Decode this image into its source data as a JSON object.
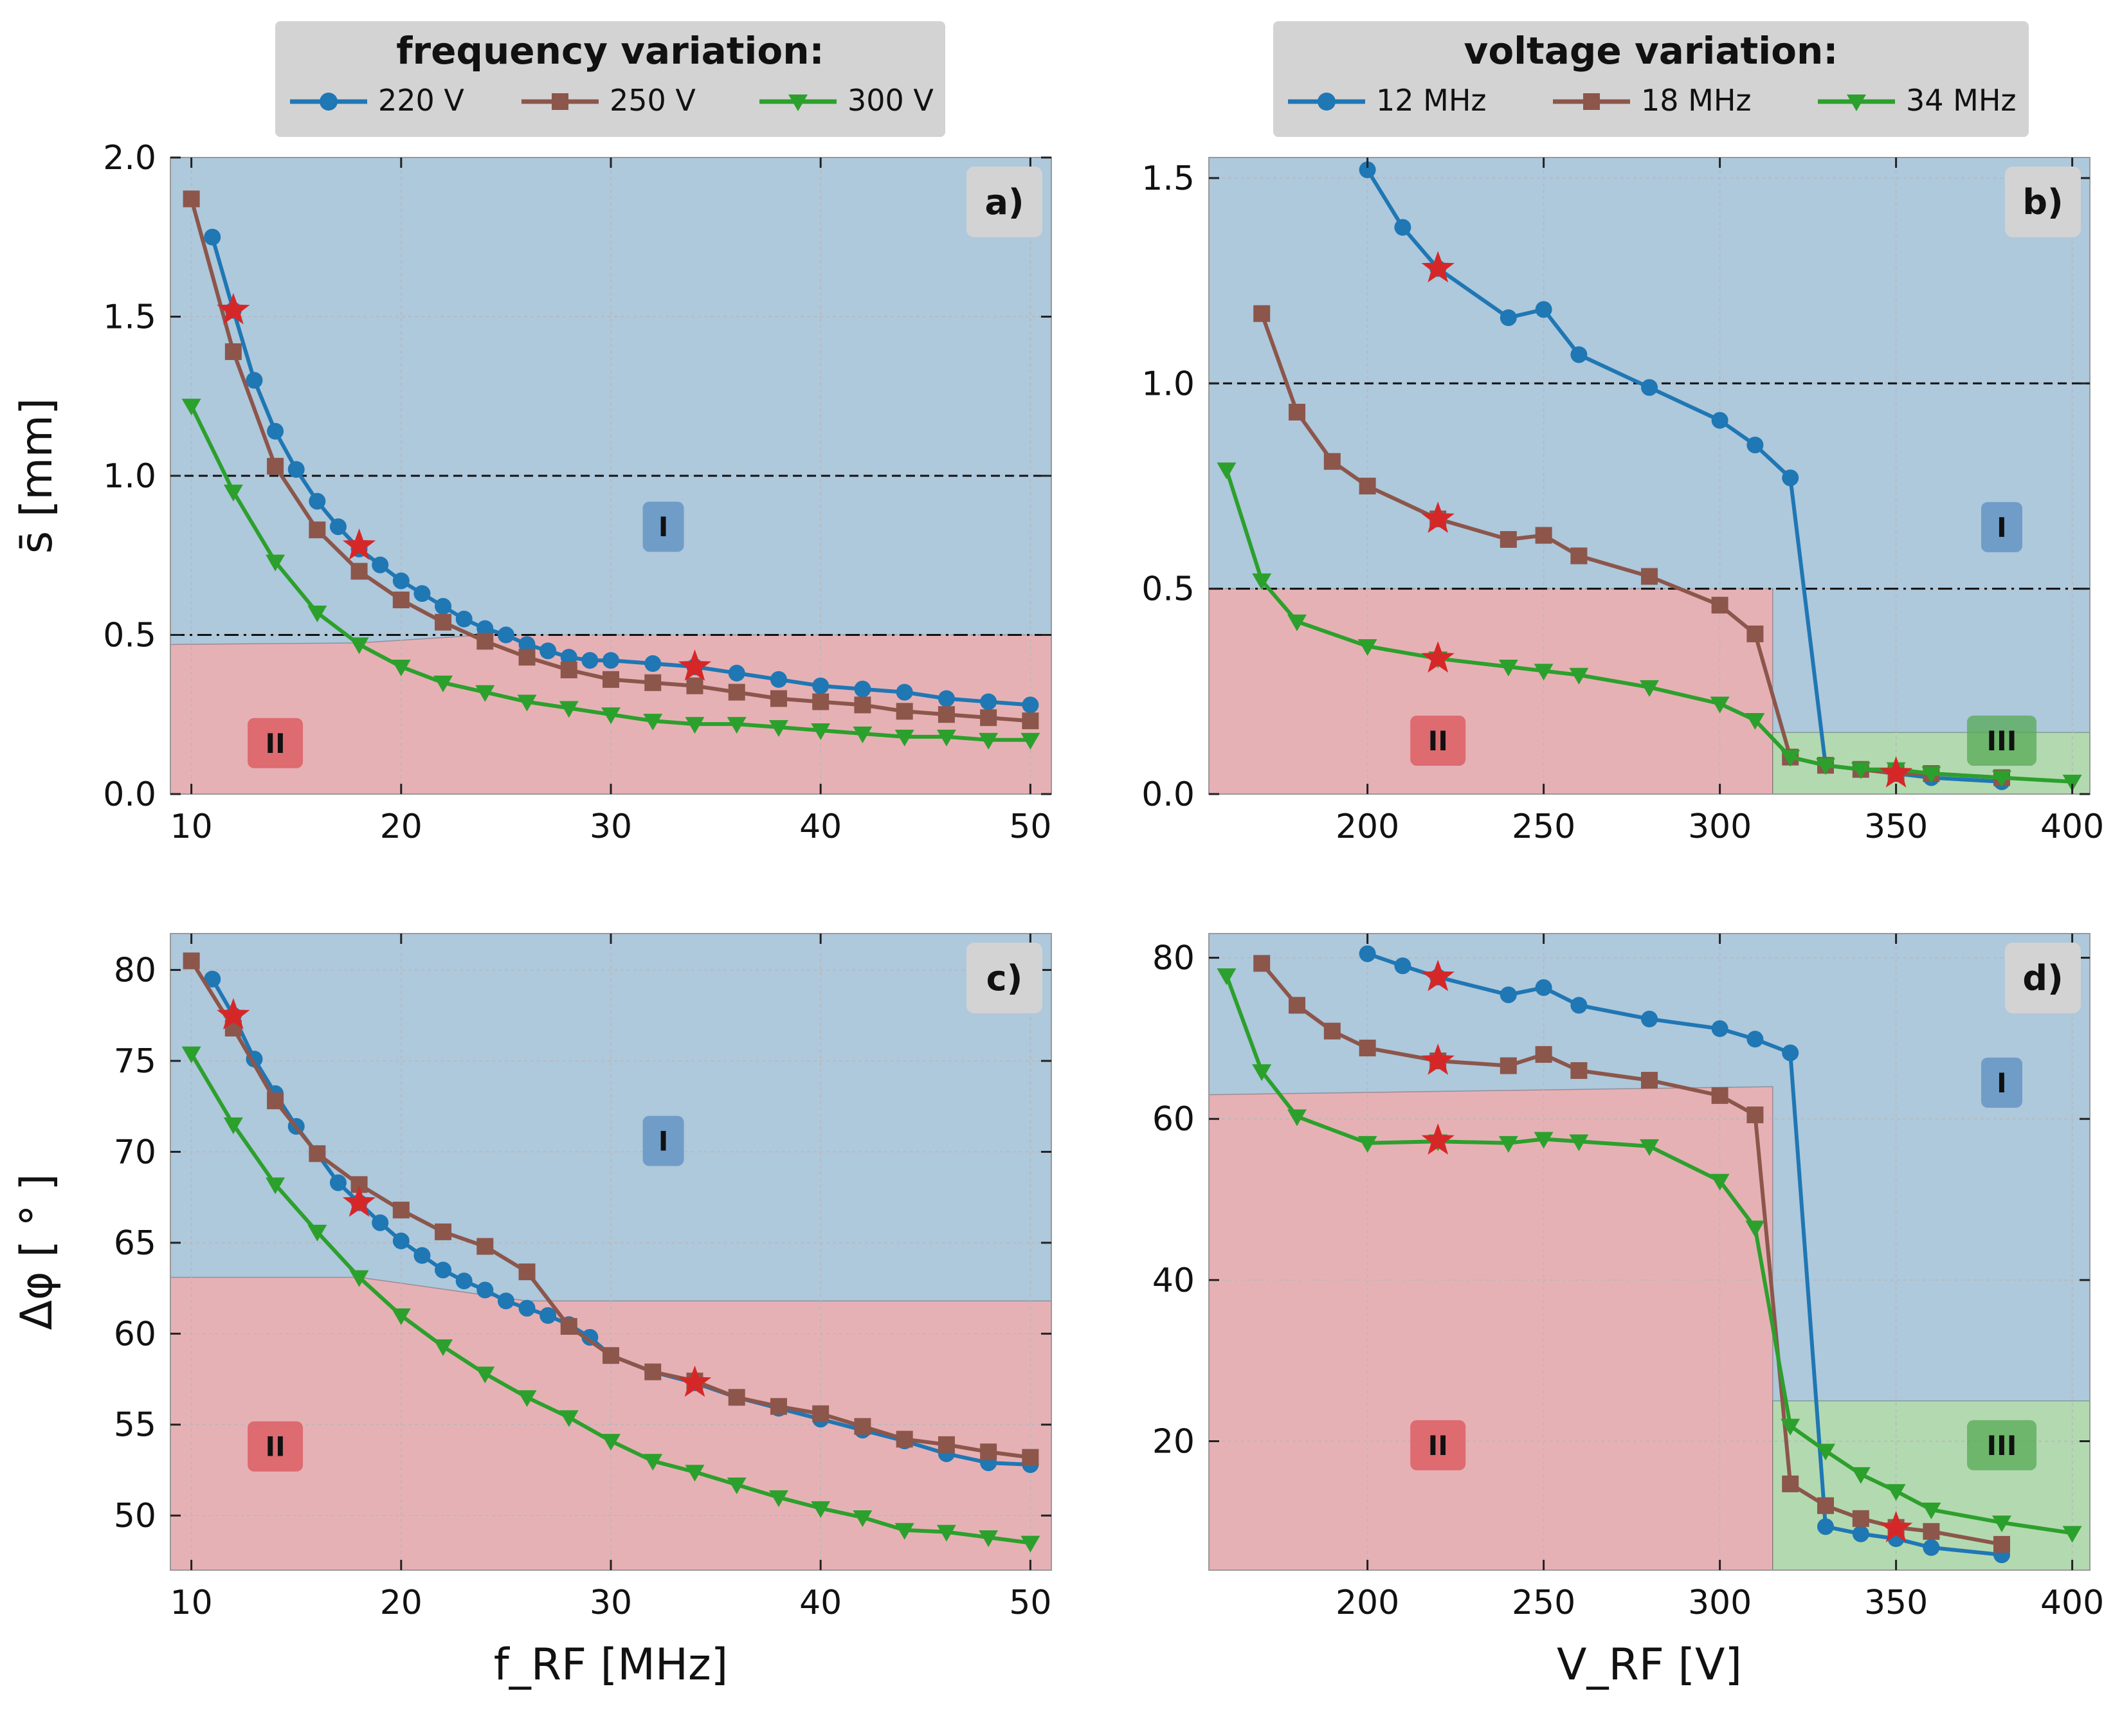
{
  "legends": {
    "freq": {
      "title": "frequency variation:",
      "entries": [
        "220 V",
        "250 V",
        "300 V"
      ]
    },
    "volt": {
      "title": "voltage variation:",
      "entries": [
        "12 MHz",
        "18 MHz",
        "34 MHz"
      ]
    }
  },
  "colors": {
    "blue": "#1f77b4",
    "brown": "#8c564b",
    "green": "#2ca02c",
    "star": "#d62728",
    "regionI": "#aec8dc",
    "regionII": "#e6b1b5",
    "regionIII": "#b3d9b0"
  },
  "chart_data": [
    {
      "panel_label": "a)",
      "type": "line",
      "xlabel": "",
      "ylabel": "s̄ [mm]",
      "xlim": [
        9,
        51
      ],
      "ylim": [
        0,
        2.0
      ],
      "xticks": [
        10,
        20,
        30,
        40,
        50
      ],
      "yticks": [
        0.0,
        0.5,
        1.0,
        1.5,
        2.0
      ],
      "ytick_labels": [
        "0.0",
        "0.5",
        "1.0",
        "1.5",
        "2.0"
      ],
      "hlines": [
        {
          "y": 1.0,
          "style": "dashed"
        },
        {
          "y": 0.5,
          "style": "dashdot"
        }
      ],
      "regions": [
        {
          "label": "I",
          "color": "regionI",
          "points": [
            [
              9,
              0
            ],
            [
              51,
              0
            ],
            [
              51,
              2.0
            ],
            [
              9,
              2.0
            ]
          ]
        },
        {
          "label": "II",
          "color": "regionII",
          "points": [
            [
              9,
              0
            ],
            [
              51,
              0
            ],
            [
              51,
              0.5
            ],
            [
              24,
              0.5
            ],
            [
              18,
              0.475
            ],
            [
              9,
              0.47
            ]
          ]
        }
      ],
      "region_labels": [
        {
          "text": "I",
          "x": 32.5,
          "y": 0.84,
          "color": "regionI"
        },
        {
          "text": "II",
          "x": 14,
          "y": 0.16,
          "color": "regionII"
        }
      ],
      "series": [
        {
          "name": "220 V",
          "color": "blue",
          "marker": "circle",
          "x": [
            11,
            12,
            13,
            14,
            15,
            16,
            17,
            18,
            19,
            20,
            21,
            22,
            23,
            24,
            25,
            26,
            27,
            28,
            29,
            30,
            32,
            34,
            36,
            38,
            40,
            42,
            44,
            46,
            48,
            50
          ],
          "y": [
            1.75,
            1.52,
            1.3,
            1.14,
            1.02,
            0.92,
            0.84,
            0.77,
            0.72,
            0.67,
            0.63,
            0.59,
            0.55,
            0.52,
            0.5,
            0.47,
            0.45,
            0.43,
            0.42,
            0.42,
            0.41,
            0.4,
            0.38,
            0.36,
            0.34,
            0.33,
            0.32,
            0.3,
            0.29,
            0.28
          ]
        },
        {
          "name": "250 V",
          "color": "brown",
          "marker": "square",
          "x": [
            10,
            12,
            14,
            16,
            18,
            20,
            22,
            24,
            26,
            28,
            30,
            32,
            34,
            36,
            38,
            40,
            42,
            44,
            46,
            48,
            50
          ],
          "y": [
            1.87,
            1.39,
            1.03,
            0.83,
            0.7,
            0.61,
            0.54,
            0.48,
            0.43,
            0.39,
            0.36,
            0.35,
            0.34,
            0.32,
            0.3,
            0.29,
            0.28,
            0.26,
            0.25,
            0.24,
            0.23
          ]
        },
        {
          "name": "300 V",
          "color": "green",
          "marker": "triangle",
          "x": [
            10,
            12,
            14,
            16,
            18,
            20,
            22,
            24,
            26,
            28,
            30,
            32,
            34,
            36,
            38,
            40,
            42,
            44,
            46,
            48,
            50
          ],
          "y": [
            1.22,
            0.95,
            0.73,
            0.57,
            0.47,
            0.4,
            0.35,
            0.32,
            0.29,
            0.27,
            0.25,
            0.23,
            0.22,
            0.22,
            0.21,
            0.2,
            0.19,
            0.18,
            0.18,
            0.17,
            0.17
          ]
        }
      ],
      "stars": [
        {
          "x": 12,
          "y": 1.52
        },
        {
          "x": 18,
          "y": 0.78
        },
        {
          "x": 34,
          "y": 0.4
        }
      ]
    },
    {
      "panel_label": "b)",
      "type": "line",
      "xlabel": "",
      "ylabel": "",
      "xlim": [
        155,
        405
      ],
      "ylim": [
        0,
        1.55
      ],
      "xticks": [
        200,
        250,
        300,
        350,
        400
      ],
      "yticks": [
        0.0,
        0.5,
        1.0,
        1.5
      ],
      "ytick_labels": [
        "0.0",
        "0.5",
        "1.0",
        "1.5"
      ],
      "hlines": [
        {
          "y": 1.0,
          "style": "dashed"
        },
        {
          "y": 0.5,
          "style": "dashdot"
        }
      ],
      "regions": [
        {
          "label": "I",
          "color": "regionI",
          "points": [
            [
              155,
              0
            ],
            [
              405,
              0
            ],
            [
              405,
              1.55
            ],
            [
              155,
              1.55
            ]
          ]
        },
        {
          "label": "II",
          "color": "regionII",
          "points": [
            [
              155,
              0
            ],
            [
              315,
              0
            ],
            [
              315,
              0.5
            ],
            [
              155,
              0.5
            ]
          ]
        },
        {
          "label": "III",
          "color": "regionIII",
          "points": [
            [
              315,
              0
            ],
            [
              405,
              0
            ],
            [
              405,
              0.15
            ],
            [
              315,
              0.15
            ]
          ]
        }
      ],
      "region_labels": [
        {
          "text": "I",
          "x": 380,
          "y": 0.65,
          "color": "regionI"
        },
        {
          "text": "II",
          "x": 220,
          "y": 0.13,
          "color": "regionII"
        },
        {
          "text": "III",
          "x": 380,
          "y": 0.13,
          "color": "regionIII"
        }
      ],
      "series": [
        {
          "name": "12 MHz",
          "color": "blue",
          "marker": "circle",
          "x": [
            200,
            210,
            220,
            240,
            250,
            260,
            280,
            300,
            310,
            320,
            330,
            340,
            350,
            360,
            380
          ],
          "y": [
            1.52,
            1.38,
            1.28,
            1.16,
            1.18,
            1.07,
            0.99,
            0.91,
            0.85,
            0.77,
            0.07,
            0.06,
            0.05,
            0.04,
            0.03
          ]
        },
        {
          "name": "18 MHz",
          "color": "brown",
          "marker": "square",
          "x": [
            170,
            180,
            190,
            200,
            220,
            240,
            250,
            260,
            280,
            300,
            310,
            320,
            330,
            340,
            350,
            360,
            380
          ],
          "y": [
            1.17,
            0.93,
            0.81,
            0.75,
            0.67,
            0.62,
            0.63,
            0.58,
            0.53,
            0.46,
            0.39,
            0.09,
            0.07,
            0.06,
            0.05,
            0.05,
            0.04
          ]
        },
        {
          "name": "34 MHz",
          "color": "green",
          "marker": "triangle",
          "x": [
            160,
            170,
            180,
            200,
            220,
            240,
            250,
            260,
            280,
            300,
            310,
            320,
            330,
            340,
            350,
            360,
            380,
            400
          ],
          "y": [
            0.79,
            0.52,
            0.42,
            0.36,
            0.33,
            0.31,
            0.3,
            0.29,
            0.26,
            0.22,
            0.18,
            0.09,
            0.07,
            0.06,
            0.06,
            0.05,
            0.04,
            0.03
          ]
        }
      ],
      "stars": [
        {
          "x": 220,
          "y": 1.28
        },
        {
          "x": 220,
          "y": 0.67
        },
        {
          "x": 220,
          "y": 0.33
        },
        {
          "x": 350,
          "y": 0.05
        }
      ]
    },
    {
      "panel_label": "c)",
      "type": "line",
      "xlabel": "f_RF [MHz]",
      "ylabel": "Δφ [ ° ]",
      "xlim": [
        9,
        51
      ],
      "ylim": [
        47,
        82
      ],
      "xticks": [
        10,
        20,
        30,
        40,
        50
      ],
      "yticks": [
        50,
        55,
        60,
        65,
        70,
        75,
        80
      ],
      "ytick_labels": [
        "50",
        "55",
        "60",
        "65",
        "70",
        "75",
        "80"
      ],
      "hlines": [],
      "regions": [
        {
          "label": "I",
          "color": "regionI",
          "points": [
            [
              9,
              47
            ],
            [
              51,
              47
            ],
            [
              51,
              82
            ],
            [
              9,
              82
            ]
          ]
        },
        {
          "label": "II",
          "color": "regionII",
          "points": [
            [
              9,
              47
            ],
            [
              51,
              47
            ],
            [
              51,
              61.8
            ],
            [
              26,
              61.8
            ],
            [
              18,
              63.1
            ],
            [
              9,
              63.1
            ]
          ]
        }
      ],
      "region_labels": [
        {
          "text": "I",
          "x": 32.5,
          "y": 70.6,
          "color": "regionI"
        },
        {
          "text": "II",
          "x": 14,
          "y": 53.8,
          "color": "regionII"
        }
      ],
      "series": [
        {
          "name": "220 V",
          "color": "blue",
          "marker": "circle",
          "x": [
            11,
            12,
            13,
            14,
            15,
            16,
            17,
            18,
            19,
            20,
            21,
            22,
            23,
            24,
            25,
            26,
            27,
            28,
            29,
            30,
            32,
            34,
            36,
            38,
            40,
            42,
            44,
            46,
            48,
            50
          ],
          "y": [
            79.5,
            77.5,
            75.1,
            73.2,
            71.4,
            69.9,
            68.3,
            67.2,
            66.1,
            65.1,
            64.3,
            63.5,
            62.9,
            62.4,
            61.8,
            61.4,
            61.0,
            60.5,
            59.8,
            58.8,
            57.9,
            57.3,
            56.5,
            55.9,
            55.3,
            54.7,
            54.1,
            53.4,
            52.9,
            52.8
          ]
        },
        {
          "name": "250 V",
          "color": "brown",
          "marker": "square",
          "x": [
            10,
            12,
            14,
            16,
            18,
            20,
            22,
            24,
            26,
            28,
            30,
            32,
            34,
            36,
            38,
            40,
            42,
            44,
            46,
            48,
            50
          ],
          "y": [
            80.5,
            76.8,
            72.8,
            69.9,
            68.2,
            66.8,
            65.6,
            64.8,
            63.4,
            60.4,
            58.8,
            57.9,
            57.4,
            56.5,
            56.0,
            55.6,
            54.9,
            54.2,
            53.9,
            53.5,
            53.2
          ]
        },
        {
          "name": "300 V",
          "color": "green",
          "marker": "triangle",
          "x": [
            10,
            12,
            14,
            16,
            18,
            20,
            22,
            24,
            26,
            28,
            30,
            32,
            34,
            36,
            38,
            40,
            42,
            44,
            46,
            48,
            50
          ],
          "y": [
            75.4,
            71.5,
            68.2,
            65.6,
            63.1,
            61.0,
            59.3,
            57.8,
            56.5,
            55.4,
            54.1,
            53.0,
            52.4,
            51.7,
            51.0,
            50.4,
            49.9,
            49.2,
            49.1,
            48.8,
            48.5
          ]
        }
      ],
      "stars": [
        {
          "x": 12,
          "y": 77.5
        },
        {
          "x": 18,
          "y": 67.2
        },
        {
          "x": 34,
          "y": 57.3
        }
      ]
    },
    {
      "panel_label": "d)",
      "type": "line",
      "xlabel": "V_RF [V]",
      "ylabel": "",
      "xlim": [
        155,
        405
      ],
      "ylim": [
        4,
        83
      ],
      "xticks": [
        200,
        250,
        300,
        350,
        400
      ],
      "yticks": [
        20,
        40,
        60,
        80
      ],
      "ytick_labels": [
        "20",
        "40",
        "60",
        "80"
      ],
      "hlines": [],
      "regions": [
        {
          "label": "I",
          "color": "regionI",
          "points": [
            [
              155,
              4
            ],
            [
              405,
              4
            ],
            [
              405,
              83
            ],
            [
              155,
              83
            ]
          ]
        },
        {
          "label": "II",
          "color": "regionII",
          "points": [
            [
              155,
              4
            ],
            [
              315,
              4
            ],
            [
              315,
              64
            ],
            [
              155,
              63
            ]
          ]
        },
        {
          "label": "III",
          "color": "regionIII",
          "points": [
            [
              315,
              4
            ],
            [
              405,
              4
            ],
            [
              405,
              25
            ],
            [
              315,
              25
            ]
          ]
        }
      ],
      "region_labels": [
        {
          "text": "I",
          "x": 380,
          "y": 64.5,
          "color": "regionI"
        },
        {
          "text": "II",
          "x": 220,
          "y": 19.5,
          "color": "regionII"
        },
        {
          "text": "III",
          "x": 380,
          "y": 19.5,
          "color": "regionIII"
        }
      ],
      "series": [
        {
          "name": "12 MHz",
          "color": "blue",
          "marker": "circle",
          "x": [
            200,
            210,
            220,
            240,
            250,
            260,
            280,
            300,
            310,
            320,
            330,
            340,
            350,
            360,
            380
          ],
          "y": [
            80.5,
            79.0,
            77.6,
            75.4,
            76.3,
            74.1,
            72.4,
            71.2,
            69.9,
            68.2,
            9.4,
            8.5,
            7.9,
            6.8,
            5.9
          ]
        },
        {
          "name": "18 MHz",
          "color": "brown",
          "marker": "square",
          "x": [
            170,
            180,
            190,
            200,
            220,
            240,
            250,
            260,
            280,
            300,
            310,
            320,
            330,
            340,
            350,
            360,
            380
          ],
          "y": [
            79.3,
            74.1,
            70.9,
            68.8,
            67.2,
            66.6,
            68.0,
            66.0,
            64.8,
            62.9,
            60.5,
            14.7,
            12.0,
            10.4,
            9.3,
            8.8,
            7.2
          ]
        },
        {
          "name": "34 MHz",
          "color": "green",
          "marker": "triangle",
          "x": [
            160,
            170,
            180,
            200,
            220,
            240,
            250,
            260,
            280,
            300,
            310,
            320,
            330,
            340,
            350,
            360,
            380,
            400
          ],
          "y": [
            77.8,
            65.9,
            60.3,
            57.0,
            57.2,
            57.0,
            57.5,
            57.2,
            56.6,
            52.3,
            46.5,
            21.9,
            18.8,
            15.9,
            13.8,
            11.5,
            9.9,
            8.6
          ]
        }
      ],
      "stars": [
        {
          "x": 220,
          "y": 77.6
        },
        {
          "x": 220,
          "y": 67.2
        },
        {
          "x": 220,
          "y": 57.3
        },
        {
          "x": 350,
          "y": 9.2
        }
      ]
    }
  ]
}
